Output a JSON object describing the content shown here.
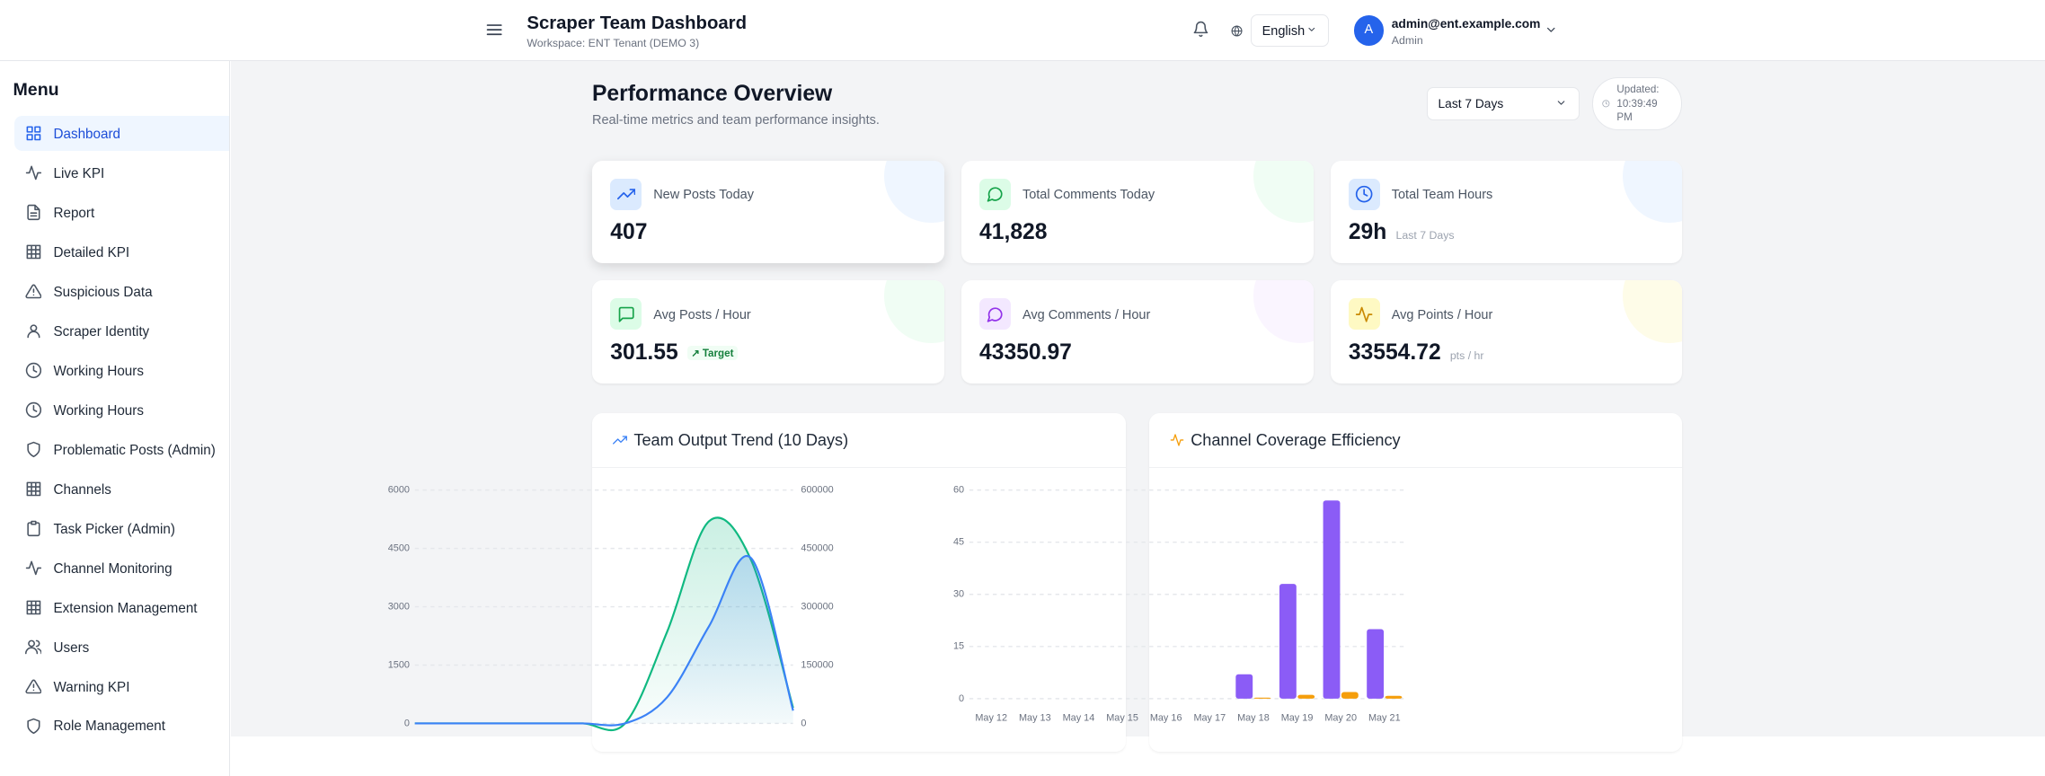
{
  "header": {
    "title": "Scraper Team Dashboard",
    "workspace": "Workspace: ENT Tenant (DEMO 3)",
    "language": "English",
    "avatar": "A",
    "email": "admin@ent.example.com",
    "role": "Admin"
  },
  "sidebar": {
    "title": "Menu",
    "items": [
      "Dashboard",
      "Live KPI",
      "Report",
      "Detailed KPI",
      "Suspicious Data",
      "Scraper Identity",
      "Working Hours",
      "Working Hours",
      "Problematic Posts (Admin)",
      "Channels",
      "Task Picker (Admin)",
      "Channel Monitoring",
      "Extension Management",
      "Users",
      "Warning KPI",
      "Role Management"
    ]
  },
  "overview": {
    "title": "Performance Overview",
    "subtitle": "Real-time metrics and team performance insights.",
    "range": "Last 7 Days",
    "updated": "Updated: 10:39:49 PM"
  },
  "kpis": [
    {
      "label": "New Posts Today",
      "value": "407"
    },
    {
      "label": "Total Comments Today",
      "value": "41,828"
    },
    {
      "label": "Total Team Hours",
      "value": "29h",
      "note": "Last 7 Days"
    },
    {
      "label": "Avg Posts / Hour",
      "value": "301.55",
      "badge": "Target"
    },
    {
      "label": "Avg Comments / Hour",
      "value": "43350.97"
    },
    {
      "label": "Avg Points / Hour",
      "value": "33554.72",
      "note": "pts / hr"
    }
  ],
  "chart_data": [
    {
      "type": "line",
      "title": "Team Output Trend (10 Days)",
      "categories": [
        null,
        null,
        null,
        null,
        null,
        null,
        null,
        null,
        null,
        null
      ],
      "ylim": [
        0,
        6000
      ],
      "yticks": [
        0,
        1500,
        3000,
        4500,
        6000
      ],
      "y2lim": [
        0,
        600000
      ],
      "y2ticks": [
        0,
        150000,
        300000,
        450000,
        600000
      ],
      "grid": true,
      "series": [
        {
          "color": "#10b981",
          "values": [
            0,
            0,
            0,
            0,
            0,
            0,
            2350,
            5200,
            4200,
            400
          ]
        },
        {
          "color": "#3b82f6",
          "axis": "y2",
          "values": [
            0,
            0,
            0,
            0,
            0,
            0,
            67000,
            250000,
            425000,
            33000
          ]
        }
      ]
    },
    {
      "type": "bar",
      "title": "Channel Coverage Efficiency",
      "categories": [
        "May 12",
        "May 13",
        "May 14",
        "May 15",
        "May 16",
        "May 17",
        "May 18",
        "May 19",
        "May 20",
        "May 21"
      ],
      "ylim": [
        0,
        60
      ],
      "yticks": [
        0,
        15,
        30,
        45,
        60
      ],
      "grid": true,
      "series": [
        {
          "color": "#8b5cf6",
          "values": [
            0,
            0,
            0,
            0,
            0,
            0,
            7,
            33,
            57,
            20
          ]
        },
        {
          "color": "#f59e0b",
          "values": [
            0,
            0,
            0,
            0,
            0,
            0,
            0.3,
            1.1,
            1.9,
            0.8
          ]
        }
      ]
    }
  ]
}
